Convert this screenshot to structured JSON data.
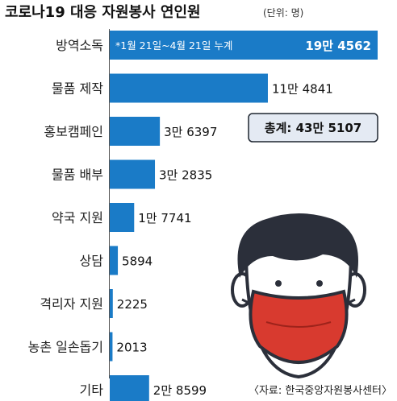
{
  "title": "코로나19 대응 자원봉사 연인원",
  "unit": "(단위: 명)",
  "note": "*1월 21일~4월 21일 누계",
  "total_label": "총계: 43만 5107",
  "source": "〈자료: 한국중앙자원봉사센터〉",
  "colors": {
    "bar": "#1a7bc7",
    "total_box": "#e4eaf3",
    "mask": "#d83a2f",
    "hair": "#2b2f3a",
    "skin": "#ffffff"
  },
  "illustration": "person-with-red-face-mask",
  "chart_data": {
    "type": "bar",
    "orientation": "horizontal",
    "title": "코로나19 대응 자원봉사 연인원",
    "unit": "명",
    "categories": [
      "방역소독",
      "물품 제작",
      "홍보캠페인",
      "물품 배부",
      "약국 지원",
      "상담",
      "격리자 지원",
      "농촌 일손돕기",
      "기타"
    ],
    "values": [
      194562,
      114841,
      36397,
      32835,
      17741,
      5894,
      2225,
      2013,
      28599
    ],
    "value_labels": [
      "19만 4562",
      "11만 4841",
      "3만 6397",
      "3만 2835",
      "1만 7741",
      "5894",
      "2225",
      "2013",
      "2만 8599"
    ],
    "xlim": [
      0,
      194562
    ],
    "grid": false,
    "legend": "none",
    "total": 435107
  }
}
